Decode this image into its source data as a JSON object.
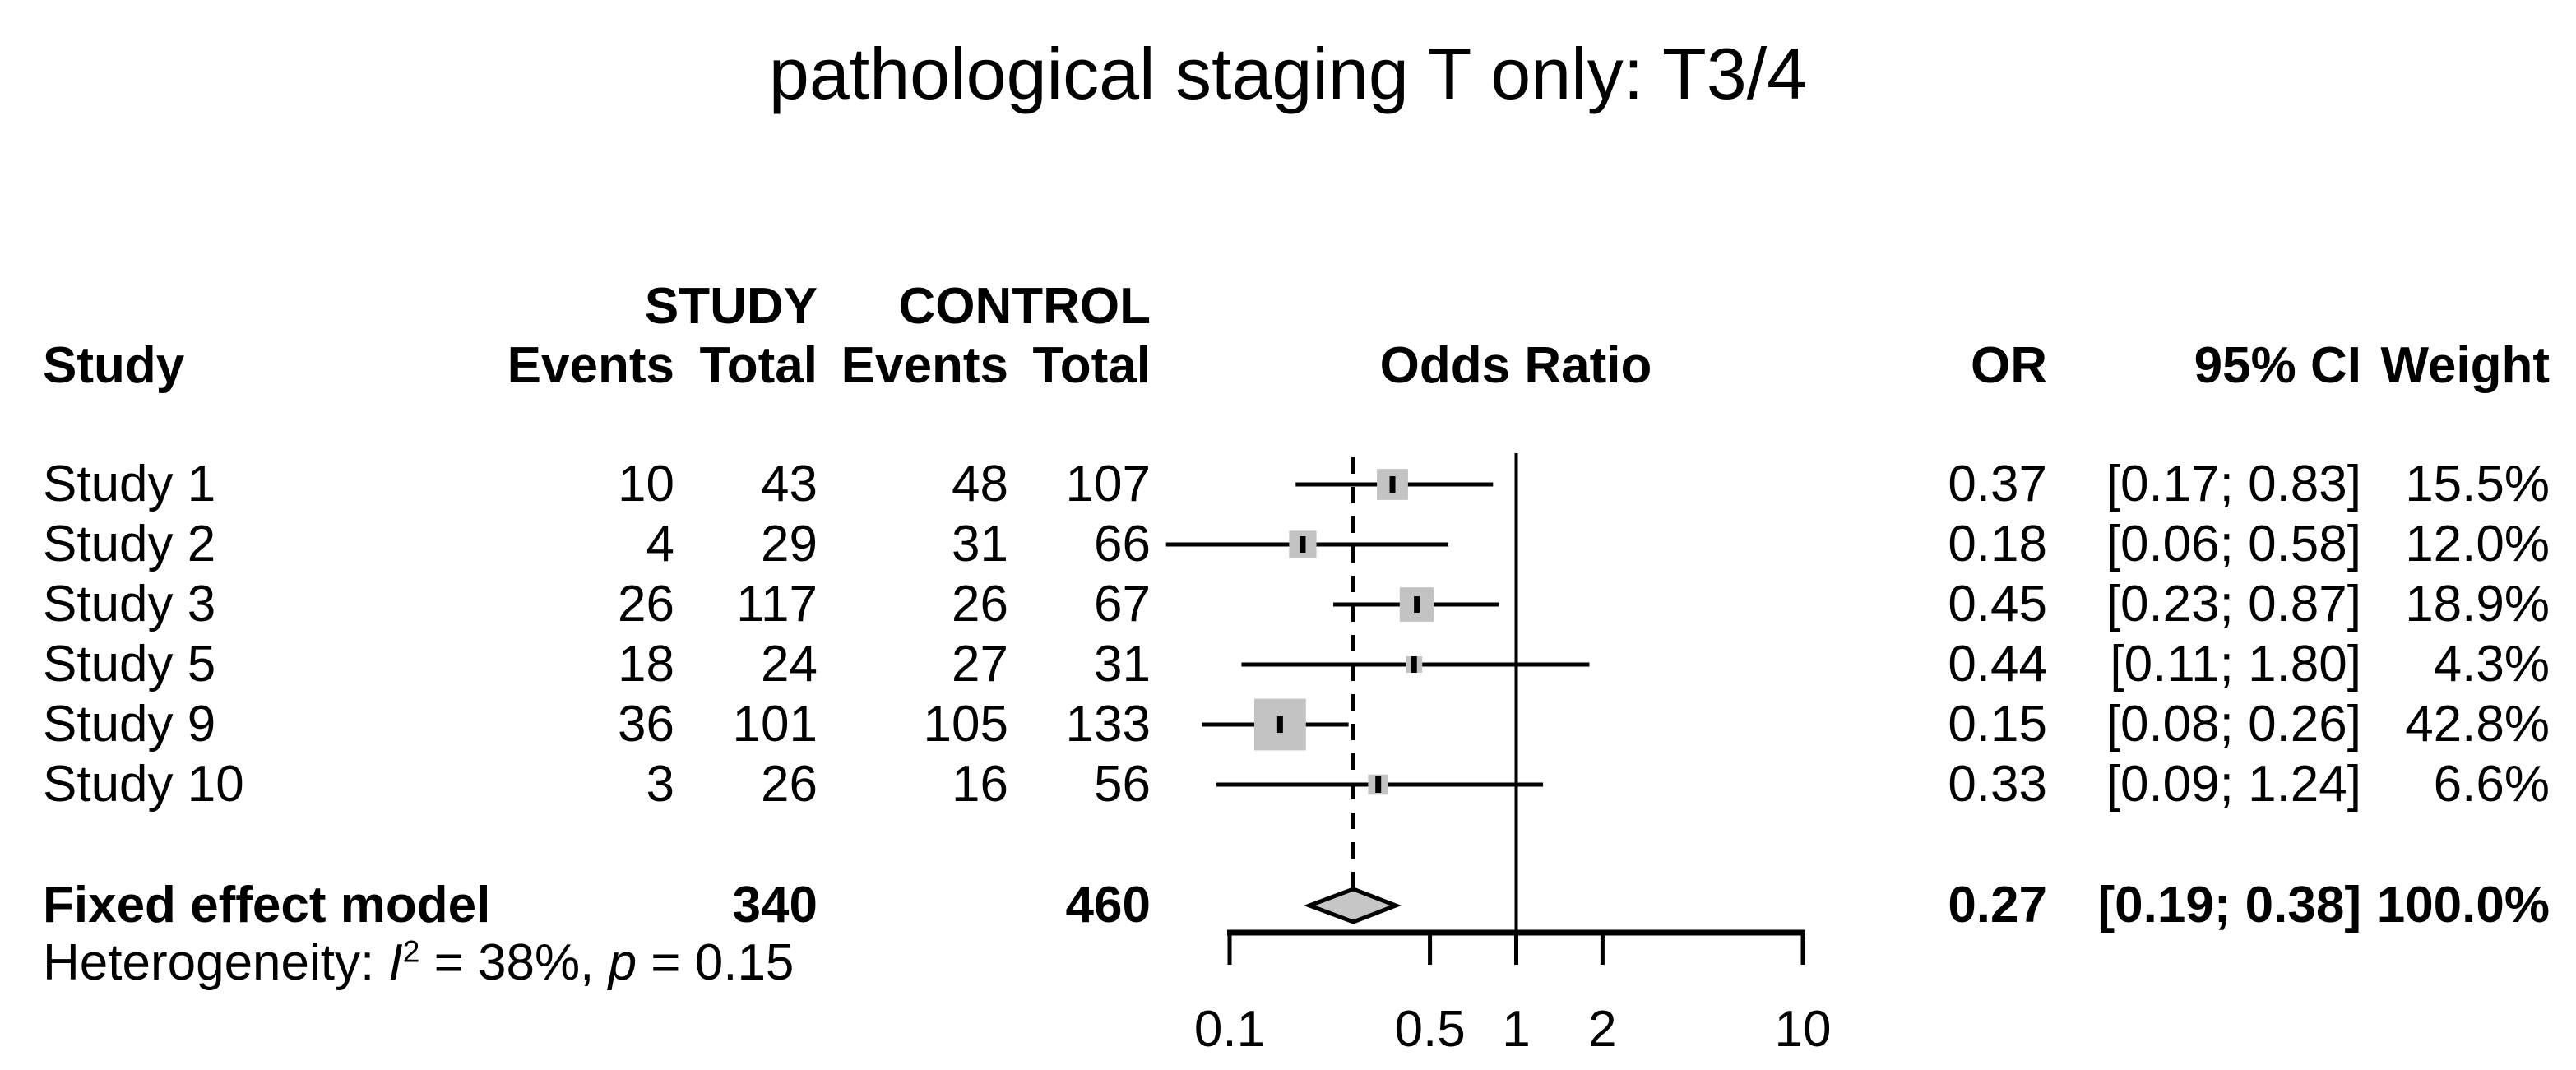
{
  "title": "pathological staging T only: T3/4",
  "colors": {
    "background": "#ffffff",
    "text": "#000000",
    "line": "#000000",
    "square": "#c3c3c3",
    "diamond": "#c6c6c6"
  },
  "chart_data": {
    "type": "forest",
    "title": "pathological staging T only: T3/4",
    "headers": {
      "group_study": "STUDY",
      "group_control": "CONTROL",
      "study": "Study",
      "events_study": "Events",
      "total_study": "Total",
      "events_control": "Events",
      "total_control": "Total",
      "odds_ratio": "Odds Ratio",
      "or": "OR",
      "ci": "95% CI",
      "weight": "Weight"
    },
    "x_axis": {
      "scale": "log",
      "range": [
        0.1,
        10
      ],
      "ticks": [
        0.1,
        0.5,
        1,
        2,
        10
      ],
      "tick_labels": [
        "0.1",
        "0.5",
        "1",
        "2",
        "10"
      ]
    },
    "ref_line": 1,
    "studies": [
      {
        "label": "Study 1",
        "events": "10",
        "total": "43",
        "control_events": "48",
        "control_total": "107",
        "or": 0.37,
        "lower": 0.17,
        "upper": 0.83,
        "weight": 15.5,
        "or_text": "0.37",
        "ci_text": "[0.17; 0.83]",
        "weight_text": "15.5%"
      },
      {
        "label": "Study 2",
        "events": "4",
        "total": "29",
        "control_events": "31",
        "control_total": "66",
        "or": 0.18,
        "lower": 0.06,
        "upper": 0.58,
        "weight": 12.0,
        "or_text": "0.18",
        "ci_text": "[0.06; 0.58]",
        "weight_text": "12.0%"
      },
      {
        "label": "Study 3",
        "events": "26",
        "total": "117",
        "control_events": "26",
        "control_total": "67",
        "or": 0.45,
        "lower": 0.23,
        "upper": 0.87,
        "weight": 18.9,
        "or_text": "0.45",
        "ci_text": "[0.23; 0.87]",
        "weight_text": "18.9%"
      },
      {
        "label": "Study 5",
        "events": "18",
        "total": "24",
        "control_events": "27",
        "control_total": "31",
        "or": 0.44,
        "lower": 0.11,
        "upper": 1.8,
        "weight": 4.3,
        "or_text": "0.44",
        "ci_text": "[0.11; 1.80]",
        "weight_text": "4.3%"
      },
      {
        "label": "Study 9",
        "events": "36",
        "total": "101",
        "control_events": "105",
        "control_total": "133",
        "or": 0.15,
        "lower": 0.08,
        "upper": 0.26,
        "weight": 42.8,
        "or_text": "0.15",
        "ci_text": "[0.08; 0.26]",
        "weight_text": "42.8%"
      },
      {
        "label": "Study 10",
        "events": "3",
        "total": "26",
        "control_events": "16",
        "control_total": "56",
        "or": 0.33,
        "lower": 0.09,
        "upper": 1.24,
        "weight": 6.6,
        "or_text": "0.33",
        "ci_text": "[0.09; 1.24]",
        "weight_text": "6.6%"
      }
    ],
    "fixed": {
      "label": "Fixed effect model",
      "total": "340",
      "control_total": "460",
      "or": 0.27,
      "lower": 0.19,
      "upper": 0.38,
      "or_text": "0.27",
      "ci_text": "[0.19; 0.38]",
      "weight_text": "100.0%"
    },
    "heterogeneity": {
      "prefix": "Heterogeneity: ",
      "stat": "I",
      "stat_sup": "2",
      "mid": " = 38%, ",
      "p": "p",
      "tail": " = 0.15"
    }
  }
}
